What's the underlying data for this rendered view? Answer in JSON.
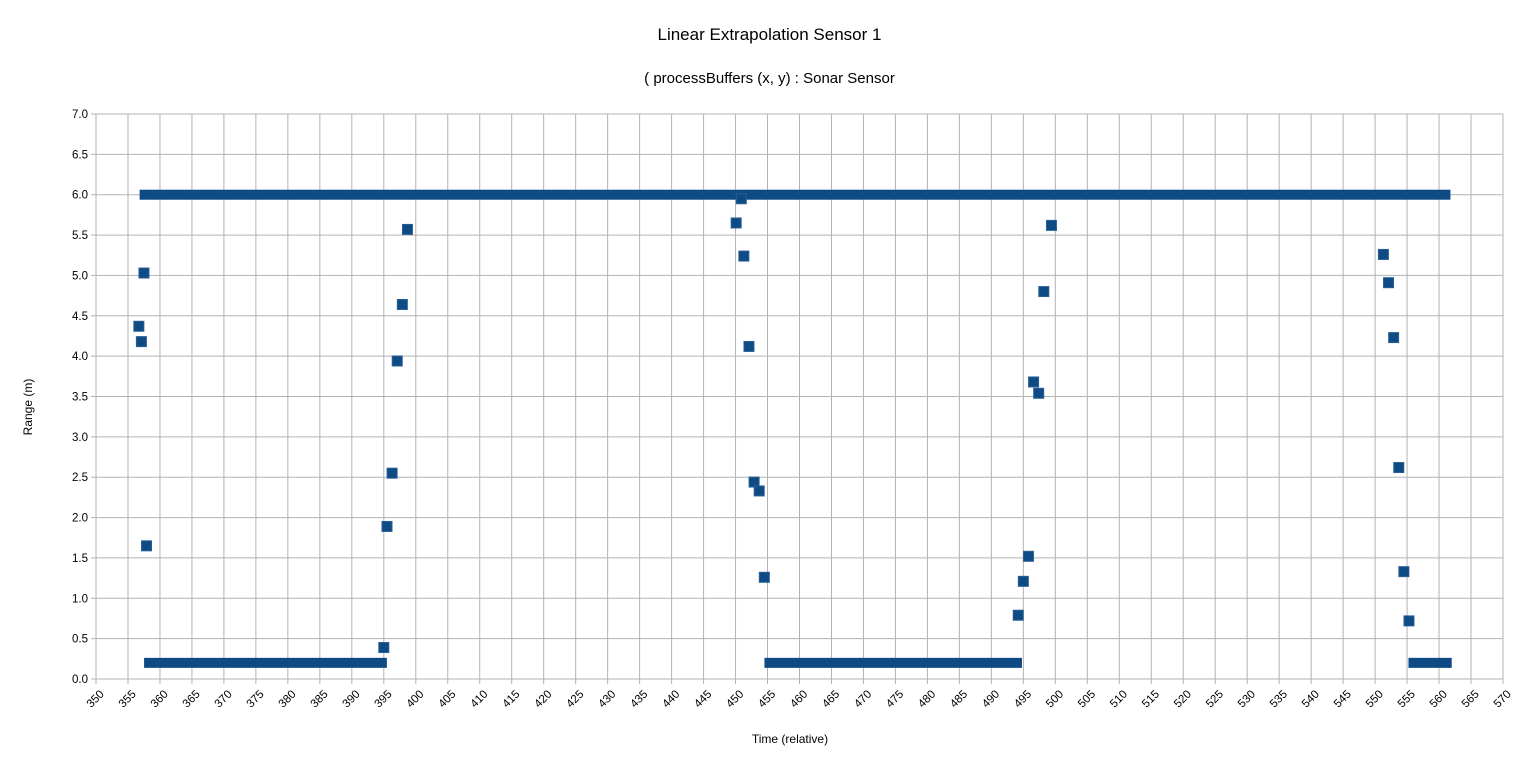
{
  "chart_data": {
    "type": "scatter",
    "title": "Linear Extrapolation Sensor 1",
    "subtitle": "( processBuffers (x, y) : Sonar Sensor",
    "xlabel": "Time (relative)",
    "ylabel": "Range (m)",
    "xlim": [
      350,
      570
    ],
    "ylim": [
      0,
      7
    ],
    "xticks": [
      350,
      355,
      360,
      365,
      370,
      375,
      380,
      385,
      390,
      395,
      400,
      405,
      410,
      415,
      420,
      425,
      430,
      435,
      440,
      445,
      450,
      455,
      460,
      465,
      470,
      475,
      480,
      485,
      490,
      495,
      500,
      505,
      510,
      515,
      520,
      525,
      530,
      535,
      540,
      545,
      550,
      555,
      560,
      565,
      570
    ],
    "yticks": [
      0.0,
      0.5,
      1.0,
      1.5,
      2.0,
      2.5,
      3.0,
      3.5,
      4.0,
      4.5,
      5.0,
      5.5,
      6.0,
      6.5,
      7.0
    ],
    "grid": true,
    "marker": "square",
    "color": "#0e4a84",
    "dense_runs": [
      {
        "x_start": 357.6,
        "x_end": 561.0,
        "y": 6.0
      },
      {
        "x_start": 358.3,
        "x_end": 394.7,
        "y": 0.2
      },
      {
        "x_start": 455.3,
        "x_end": 494.0,
        "y": 0.2
      },
      {
        "x_start": 556.0,
        "x_end": 561.2,
        "y": 0.2
      }
    ],
    "points": [
      {
        "x": 356.7,
        "y": 4.37
      },
      {
        "x": 357.1,
        "y": 4.18
      },
      {
        "x": 357.5,
        "y": 5.03
      },
      {
        "x": 357.9,
        "y": 1.65
      },
      {
        "x": 395.0,
        "y": 0.39
      },
      {
        "x": 395.5,
        "y": 1.89
      },
      {
        "x": 396.3,
        "y": 2.55
      },
      {
        "x": 397.1,
        "y": 3.94
      },
      {
        "x": 397.9,
        "y": 4.64
      },
      {
        "x": 398.7,
        "y": 5.57
      },
      {
        "x": 450.1,
        "y": 5.65
      },
      {
        "x": 450.9,
        "y": 5.95
      },
      {
        "x": 451.3,
        "y": 5.24
      },
      {
        "x": 452.1,
        "y": 4.12
      },
      {
        "x": 452.9,
        "y": 2.44
      },
      {
        "x": 453.7,
        "y": 2.33
      },
      {
        "x": 454.5,
        "y": 1.26
      },
      {
        "x": 494.2,
        "y": 0.79
      },
      {
        "x": 495.0,
        "y": 1.21
      },
      {
        "x": 495.8,
        "y": 1.52
      },
      {
        "x": 496.6,
        "y": 3.68
      },
      {
        "x": 497.4,
        "y": 3.54
      },
      {
        "x": 498.2,
        "y": 4.8
      },
      {
        "x": 499.4,
        "y": 5.62
      },
      {
        "x": 551.3,
        "y": 5.26
      },
      {
        "x": 552.1,
        "y": 4.91
      },
      {
        "x": 552.9,
        "y": 4.23
      },
      {
        "x": 553.7,
        "y": 2.62
      },
      {
        "x": 554.5,
        "y": 1.33
      },
      {
        "x": 555.3,
        "y": 0.72
      }
    ]
  }
}
